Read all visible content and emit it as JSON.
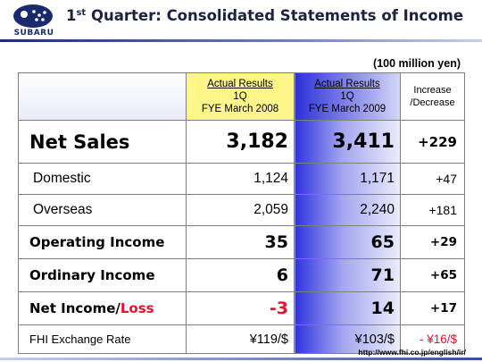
{
  "header": {
    "logo_text": "SUBARU",
    "title_sup": "st",
    "title_number": "1",
    "title_rest": " Quarter: Consolidated Statements of Income"
  },
  "unit": "(100 million yen)",
  "table": {
    "col1": {
      "line1": "Actual Results",
      "line2": "1Q",
      "line3": "FYE March 2008"
    },
    "col2": {
      "line1": "Actual Results",
      "line2": "1Q",
      "line3": "FYE March 2009"
    },
    "col3": {
      "line1": "Increase",
      "line2": "/Decrease"
    },
    "rows": [
      {
        "label": "Net Sales",
        "v2008": "3,182",
        "v2009": "3,411",
        "change": "+229"
      },
      {
        "label": "Domestic",
        "v2008": "1,124",
        "v2009": "1,171",
        "change": "+47"
      },
      {
        "label": "Overseas",
        "v2008": "2,059",
        "v2009": "2,240",
        "change": "+181"
      },
      {
        "label": "Operating Income",
        "v2008": "35",
        "v2009": "65",
        "change": "+29"
      },
      {
        "label": "Ordinary Income",
        "v2008": "6",
        "v2009": "71",
        "change": "+65"
      },
      {
        "label_a": "Net Income/",
        "label_b": "Loss",
        "v2008": "-3",
        "v2009": "14",
        "change": "+17"
      },
      {
        "label": "FHI Exchange Rate",
        "v2008": "¥119/$",
        "v2009": "¥103/$",
        "change": "- ¥16/$"
      }
    ]
  },
  "footer": {
    "url": "http://www.fhi.co.jp/english/ir/"
  },
  "colors": {
    "accent_blue": "#2c2fd8",
    "highlight_yellow": "#fff68a",
    "negative_red": "#e8112d"
  }
}
